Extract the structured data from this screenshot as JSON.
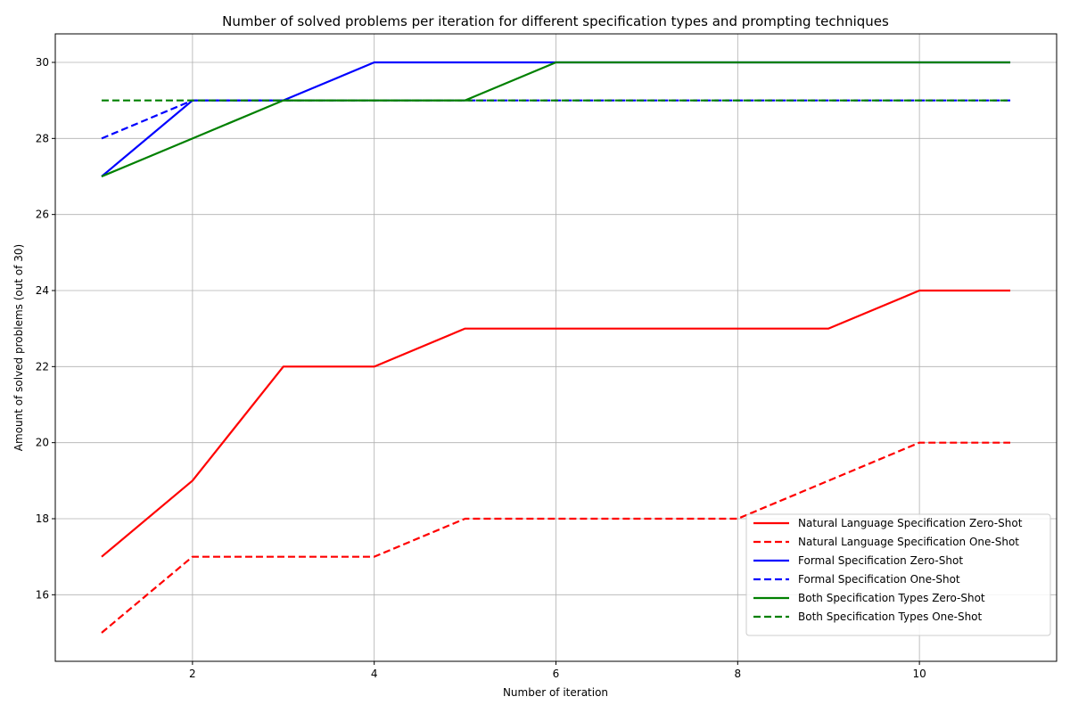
{
  "chart_data": {
    "type": "line",
    "title": "Number of solved problems per iteration for different specification types and prompting techniques",
    "xlabel": "Number of iteration",
    "ylabel": "Amount of solved problems (out of 30)",
    "xlim": [
      0.49,
      11.51
    ],
    "ylim": [
      14.25,
      30.75
    ],
    "xticks": [
      2,
      4,
      6,
      8,
      10
    ],
    "yticks": [
      16,
      18,
      20,
      22,
      24,
      26,
      28,
      30
    ],
    "grid": true,
    "legend_position": "lower-right",
    "x": [
      1,
      2,
      3,
      4,
      5,
      6,
      7,
      8,
      9,
      10,
      11
    ],
    "series": [
      {
        "name": "Natural Language Specification Zero-Shot",
        "color": "#ff0000",
        "dash": "solid",
        "values": [
          17,
          19,
          22,
          22,
          23,
          23,
          23,
          23,
          23,
          24,
          24
        ]
      },
      {
        "name": "Natural Language Specification One-Shot",
        "color": "#ff0000",
        "dash": "dashed",
        "values": [
          15,
          17,
          17,
          17,
          18,
          18,
          18,
          18,
          19,
          20,
          20
        ]
      },
      {
        "name": "Formal Specification Zero-Shot",
        "color": "#0000ff",
        "dash": "solid",
        "values": [
          27,
          29,
          29,
          30,
          30,
          30,
          30,
          30,
          30,
          30,
          30
        ]
      },
      {
        "name": "Formal Specification One-Shot",
        "color": "#0000ff",
        "dash": "dashed",
        "values": [
          28,
          29,
          29,
          29,
          29,
          29,
          29,
          29,
          29,
          29,
          29
        ]
      },
      {
        "name": "Both Specification Types Zero-Shot",
        "color": "#008000",
        "dash": "solid",
        "values": [
          27,
          28,
          29,
          29,
          29,
          30,
          30,
          30,
          30,
          30,
          30
        ]
      },
      {
        "name": "Both Specification Types One-Shot",
        "color": "#008000",
        "dash": "dashed",
        "values": [
          29,
          29,
          29,
          29,
          29,
          29,
          29,
          29,
          29,
          29,
          29
        ]
      }
    ]
  }
}
